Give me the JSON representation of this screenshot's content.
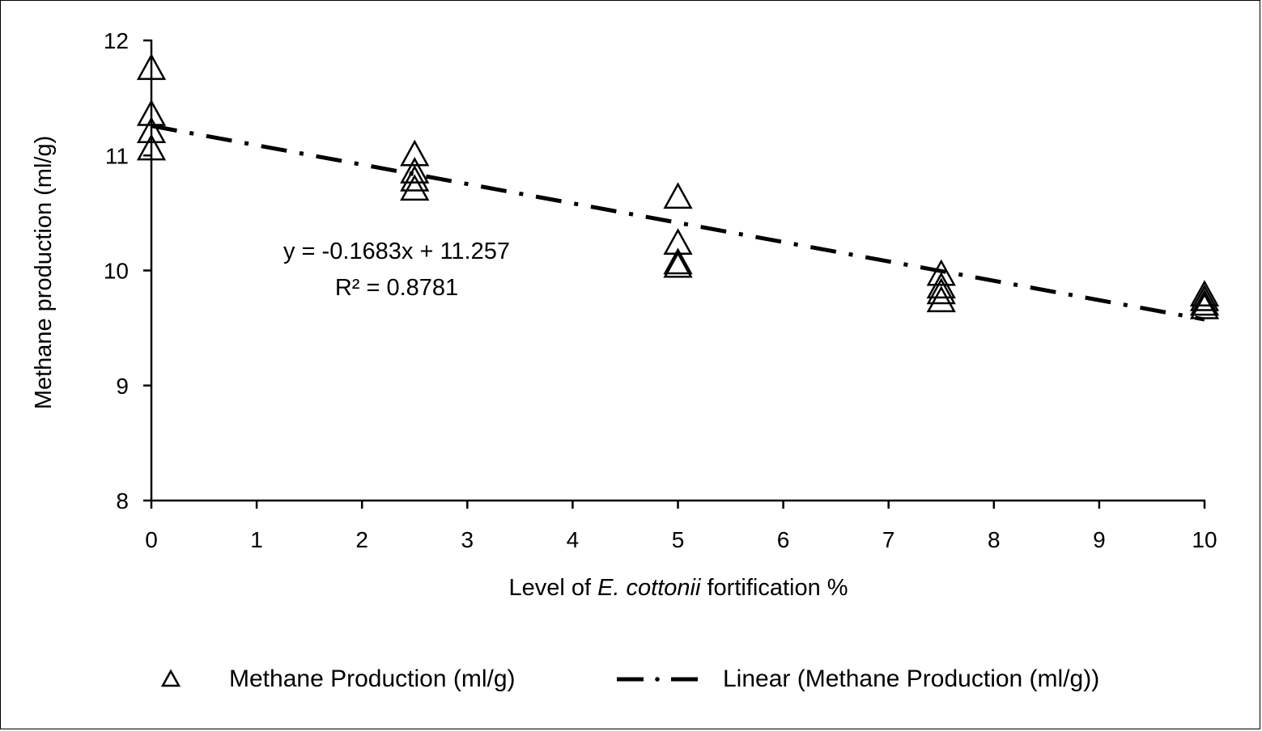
{
  "chart_data": {
    "type": "scatter",
    "title": "",
    "xlabel": {
      "prefix": "Level of ",
      "italic": "E. cottonii",
      "suffix": " fortification %"
    },
    "ylabel": "Methane production (ml/g)",
    "xlim": [
      0,
      10
    ],
    "ylim": [
      8,
      12
    ],
    "x_ticks": [
      "0",
      "1",
      "2",
      "3",
      "4",
      "5",
      "6",
      "7",
      "8",
      "9",
      "10"
    ],
    "y_ticks": [
      "8",
      "9",
      "10",
      "11",
      "12"
    ],
    "grid": false,
    "legend_position": "bottom",
    "series": [
      {
        "name": "Methane Production (ml/g)",
        "marker": "triangle-open",
        "points": [
          {
            "x": 0,
            "y": 11.75
          },
          {
            "x": 0,
            "y": 11.35
          },
          {
            "x": 0,
            "y": 11.2
          },
          {
            "x": 0,
            "y": 11.05
          },
          {
            "x": 2.5,
            "y": 11.0
          },
          {
            "x": 2.5,
            "y": 10.85
          },
          {
            "x": 2.5,
            "y": 10.78
          },
          {
            "x": 2.5,
            "y": 10.7
          },
          {
            "x": 5,
            "y": 10.63
          },
          {
            "x": 5,
            "y": 10.23
          },
          {
            "x": 5,
            "y": 10.06
          },
          {
            "x": 5,
            "y": 10.03
          },
          {
            "x": 7.5,
            "y": 9.96
          },
          {
            "x": 7.5,
            "y": 9.85
          },
          {
            "x": 7.5,
            "y": 9.8
          },
          {
            "x": 7.5,
            "y": 9.73
          },
          {
            "x": 10,
            "y": 9.78
          },
          {
            "x": 10,
            "y": 9.74
          },
          {
            "x": 10,
            "y": 9.7
          },
          {
            "x": 10,
            "y": 9.67
          }
        ]
      }
    ],
    "trendline": {
      "name": "Linear (Methane Production (ml/g))",
      "style": "dash-dot",
      "slope": -0.1683,
      "intercept": 11.257,
      "x_range": [
        0,
        10
      ],
      "equation": "y = -0.1683x + 11.257",
      "r2_label": "R² = 0.8781"
    }
  }
}
